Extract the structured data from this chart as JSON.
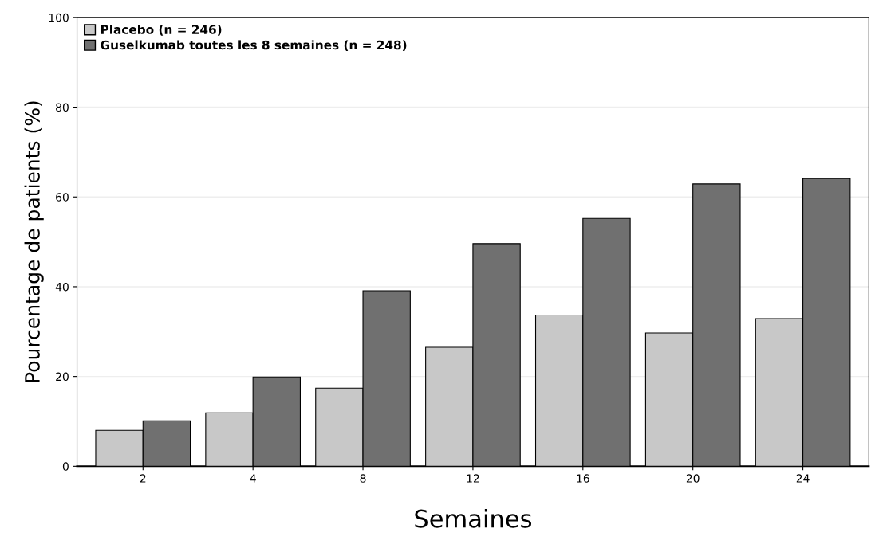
{
  "chart_data": {
    "type": "bar",
    "xlabel": "Semaines",
    "ylabel": "Pourcentage de patients (%)",
    "categories": [
      "2",
      "4",
      "8",
      "12",
      "16",
      "20",
      "24"
    ],
    "series": [
      {
        "name": "Placebo (n = 246)",
        "color": "#c8c8c8",
        "values": [
          8.0,
          11.9,
          17.4,
          26.5,
          33.7,
          29.7,
          32.9
        ]
      },
      {
        "name": "Guselkumab toutes les 8 semaines (n = 248)",
        "color": "#707070",
        "values": [
          10.1,
          19.9,
          39.1,
          49.6,
          55.2,
          62.9,
          64.1
        ]
      }
    ],
    "ylim": [
      0,
      100
    ],
    "yticks": [
      0,
      20,
      40,
      60,
      80,
      100
    ],
    "grid": "y",
    "legend": "top left"
  }
}
